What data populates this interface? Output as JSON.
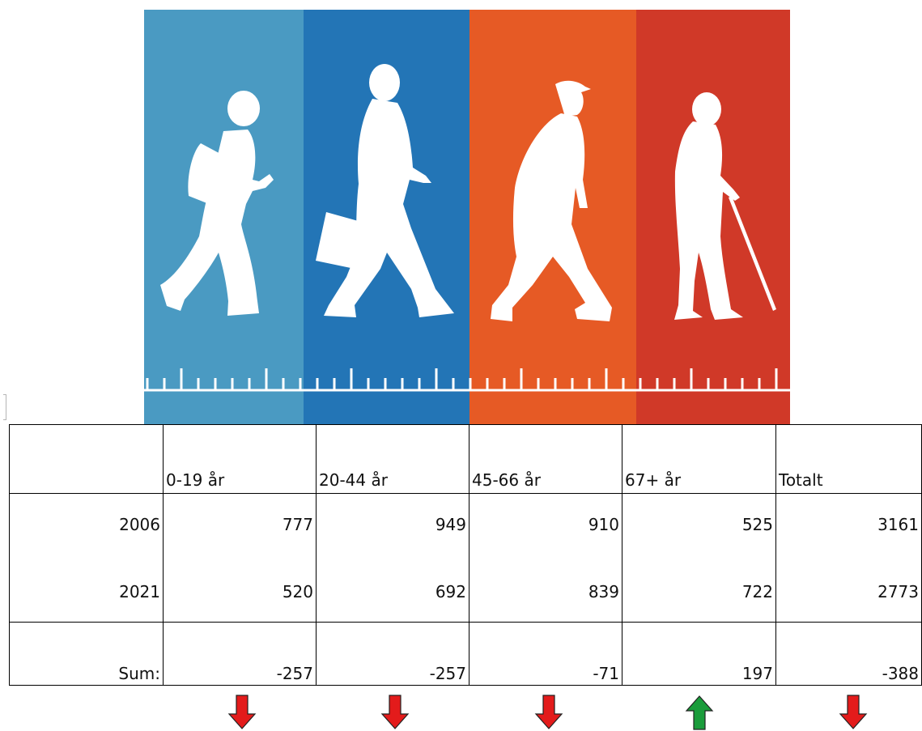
{
  "banner": {
    "panels": [
      {
        "color": "#4a9ac2",
        "figure": "walking-teen-with-phone-icon"
      },
      {
        "color": "#2375b6",
        "figure": "walking-adult-with-briefcase-icon"
      },
      {
        "color": "#e65a25",
        "figure": "walking-older-adult-icon"
      },
      {
        "color": "#d03928",
        "figure": "walking-elderly-with-cane-icon"
      }
    ]
  },
  "table": {
    "headers": [
      "",
      "0-19 år",
      "20-44 år",
      "45-66 år",
      "67+ år",
      "Totalt"
    ],
    "rows": [
      {
        "label": "2006",
        "values": [
          "777",
          "949",
          "910",
          "525",
          "3161"
        ]
      },
      {
        "label": "2021",
        "values": [
          "520",
          "692",
          "839",
          "722",
          "2773"
        ]
      }
    ],
    "sum": {
      "label": "Sum:",
      "values": [
        "-257",
        "-257",
        "-71",
        "197",
        "-388"
      ]
    }
  },
  "arrows": [
    {
      "direction": "down",
      "color": "#e31b1b",
      "icon": "red-down-arrow-icon"
    },
    {
      "direction": "down",
      "color": "#e31b1b",
      "icon": "red-down-arrow-icon"
    },
    {
      "direction": "down",
      "color": "#e31b1b",
      "icon": "red-down-arrow-icon"
    },
    {
      "direction": "up",
      "color": "#1a9c3b",
      "icon": "green-up-arrow-icon"
    },
    {
      "direction": "down",
      "color": "#e31b1b",
      "icon": "red-down-arrow-icon"
    }
  ]
}
